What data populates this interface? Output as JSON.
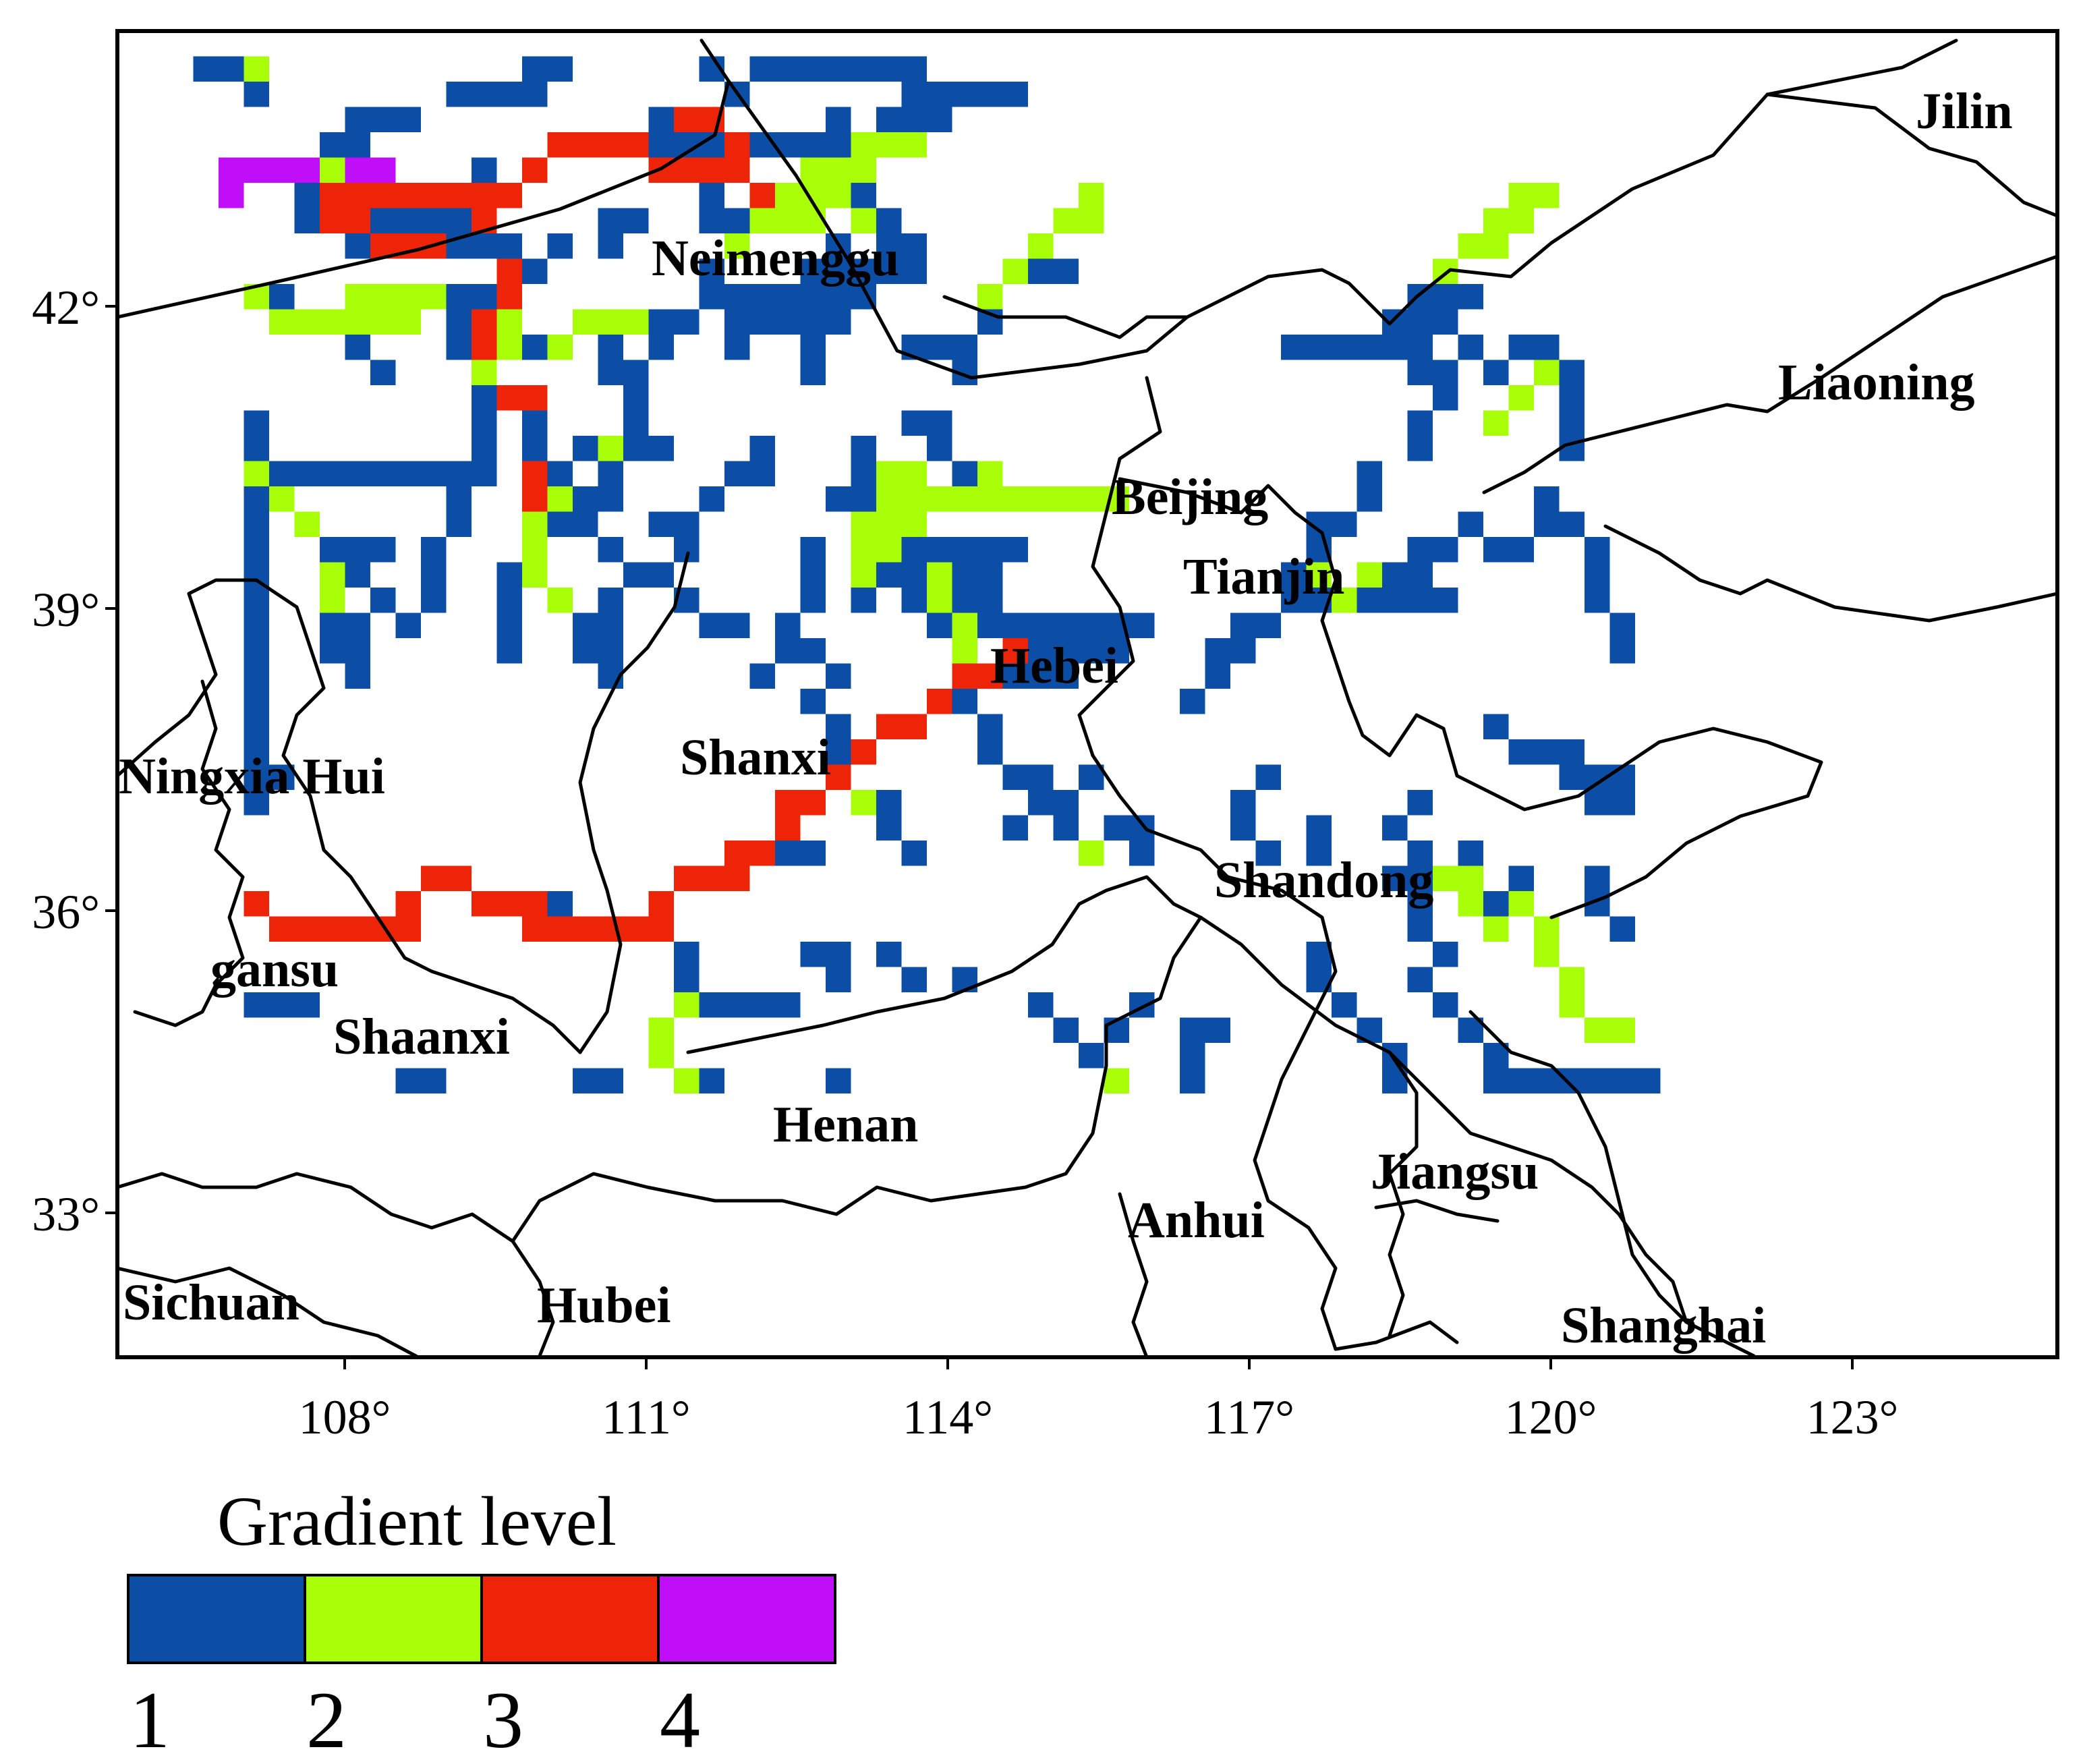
{
  "map": {
    "axes": {
      "x_ticks": [
        "108°",
        "111°",
        "114°",
        "117°",
        "120°",
        "123°"
      ],
      "y_ticks": [
        "42°",
        "39°",
        "36°",
        "33°"
      ]
    },
    "regions": [
      {
        "key": "jilin",
        "label": "Jilin"
      },
      {
        "key": "neimenggu",
        "label": "Neimenggu"
      },
      {
        "key": "liaoning",
        "label": "Liaoning"
      },
      {
        "key": "beijing",
        "label": "Beijing"
      },
      {
        "key": "tianjin",
        "label": "Tianjin"
      },
      {
        "key": "hebei",
        "label": "Hebei"
      },
      {
        "key": "shanxi",
        "label": "Shanxi"
      },
      {
        "key": "ningxia",
        "label": "Ningxia Hui"
      },
      {
        "key": "shandong",
        "label": "Shandong"
      },
      {
        "key": "gansu",
        "label": "gansu"
      },
      {
        "key": "shaanxi",
        "label": "Shaanxi"
      },
      {
        "key": "henan",
        "label": "Henan"
      },
      {
        "key": "jiangsu",
        "label": "Jiangsu"
      },
      {
        "key": "anhui",
        "label": "Anhui"
      },
      {
        "key": "sichuan",
        "label": "Sichuan"
      },
      {
        "key": "hubei",
        "label": "Hubei"
      },
      {
        "key": "shanghai",
        "label": "Shanghai"
      }
    ],
    "gradient_colors": {
      "1": "#0c4ea6",
      "2": "#a8ff07",
      "3": "#ee2409",
      "4": "#c10ef9"
    }
  },
  "legend": {
    "title": "Gradient level",
    "levels": [
      {
        "label": "1",
        "color": "#0c4ea6"
      },
      {
        "label": "2",
        "color": "#a8ff07"
      },
      {
        "label": "3",
        "color": "#ee2409"
      },
      {
        "label": "4",
        "color": "#c10ef9"
      }
    ]
  }
}
